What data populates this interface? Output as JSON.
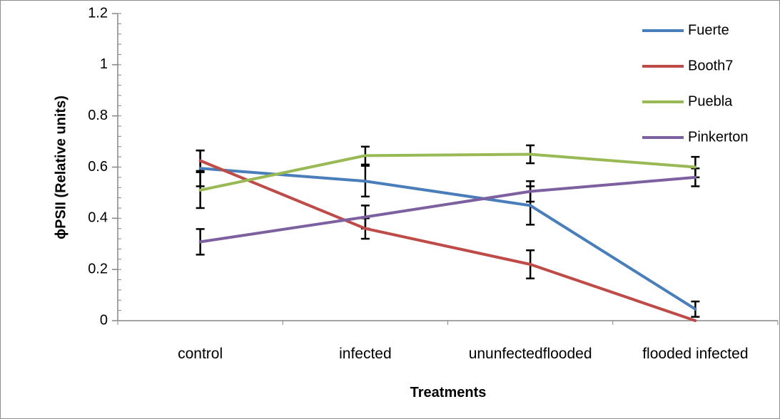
{
  "chart_data": {
    "type": "line",
    "title": "",
    "xlabel": "Treatments",
    "ylabel": "ϕPSII (Relative units)",
    "ylim": [
      0,
      1.2
    ],
    "y_ticks": [
      "0",
      "0.2",
      "0.4",
      "0.6",
      "0.8",
      "1",
      "1.2"
    ],
    "y_tick_values": [
      0,
      0.2,
      0.4,
      0.6,
      0.8,
      1.0,
      1.2
    ],
    "y_minor_step": 0.04,
    "grid": false,
    "legend_position": "top-right",
    "categories": [
      "control",
      "infected",
      "ununfectedflooded",
      "flooded infected"
    ],
    "series": [
      {
        "name": "Fuerte",
        "color": "#4a7ebb",
        "values": [
          0.595,
          0.545,
          0.45,
          0.045
        ],
        "errors": [
          0.07,
          0.06,
          0.075,
          0.03
        ]
      },
      {
        "name": "Booth7",
        "color": "#be4b48",
        "values": [
          0.625,
          0.36,
          0.22,
          0.0
        ],
        "errors": [
          0.04,
          0.04,
          0.055,
          0.0
        ]
      },
      {
        "name": "Puebla",
        "color": "#98b954",
        "values": [
          0.51,
          0.645,
          0.65,
          0.6
        ],
        "errors": [
          0.07,
          0.035,
          0.035,
          0.04
        ]
      },
      {
        "name": "Pinkerton",
        "color": "#7d60a0",
        "values": [
          0.308,
          0.405,
          0.505,
          0.56
        ],
        "errors": [
          0.05,
          0.045,
          0.04,
          0.035
        ]
      }
    ]
  }
}
